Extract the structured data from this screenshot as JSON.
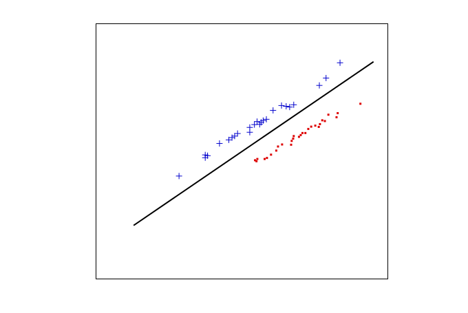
{
  "chart_data": {
    "type": "scatter",
    "title": "",
    "xlabel": "",
    "ylabel": "",
    "xlim": [
      0,
      100
    ],
    "ylim": [
      0,
      100
    ],
    "grid": false,
    "legend": "none",
    "axis_ticks": false,
    "series": [
      {
        "marker": "plus",
        "color": "#0000cc",
        "points": [
          [
            28.4,
            40.3
          ],
          [
            37.4,
            47.5
          ],
          [
            37.4,
            48.6
          ],
          [
            38.2,
            48.3
          ],
          [
            42.3,
            53.1
          ],
          [
            45.5,
            54.5
          ],
          [
            46.6,
            55.4
          ],
          [
            47.5,
            56.0
          ],
          [
            48.5,
            57.0
          ],
          [
            52.7,
            57.5
          ],
          [
            52.7,
            59.4
          ],
          [
            54.3,
            60.5
          ],
          [
            55.2,
            61.7
          ],
          [
            56.1,
            60.6
          ],
          [
            56.6,
            61.4
          ],
          [
            57.3,
            62.1
          ],
          [
            58.4,
            62.6
          ],
          [
            60.7,
            66.1
          ],
          [
            63.6,
            68.0
          ],
          [
            65.2,
            67.7
          ],
          [
            66.4,
            67.4
          ],
          [
            67.8,
            68.3
          ],
          [
            76.6,
            75.9
          ],
          [
            78.9,
            78.8
          ],
          [
            83.7,
            84.8
          ]
        ]
      },
      {
        "marker": "dot",
        "color": "#dd0000",
        "points": [
          [
            54.5,
            46.5
          ],
          [
            55.0,
            46.1
          ],
          [
            55.3,
            47.0
          ],
          [
            57.8,
            47.0
          ],
          [
            58.6,
            47.4
          ],
          [
            60.0,
            48.7
          ],
          [
            61.8,
            50.3
          ],
          [
            62.4,
            51.9
          ],
          [
            63.8,
            52.7
          ],
          [
            66.9,
            52.6
          ],
          [
            67.1,
            54.1
          ],
          [
            67.6,
            55.0
          ],
          [
            67.8,
            56.0
          ],
          [
            69.6,
            55.7
          ],
          [
            70.2,
            56.4
          ],
          [
            70.8,
            57.2
          ],
          [
            71.8,
            57.2
          ],
          [
            72.8,
            58.8
          ],
          [
            73.8,
            59.7
          ],
          [
            75.2,
            60.1
          ],
          [
            76.4,
            59.6
          ],
          [
            76.8,
            60.7
          ],
          [
            77.6,
            62.2
          ],
          [
            78.5,
            61.9
          ],
          [
            79.7,
            64.4
          ],
          [
            82.5,
            63.4
          ],
          [
            82.9,
            65.0
          ],
          [
            90.7,
            68.7
          ]
        ]
      }
    ],
    "line": {
      "color": "#000000",
      "from": [
        12.8,
        20.9
      ],
      "to": [
        95.2,
        85.2
      ]
    }
  }
}
